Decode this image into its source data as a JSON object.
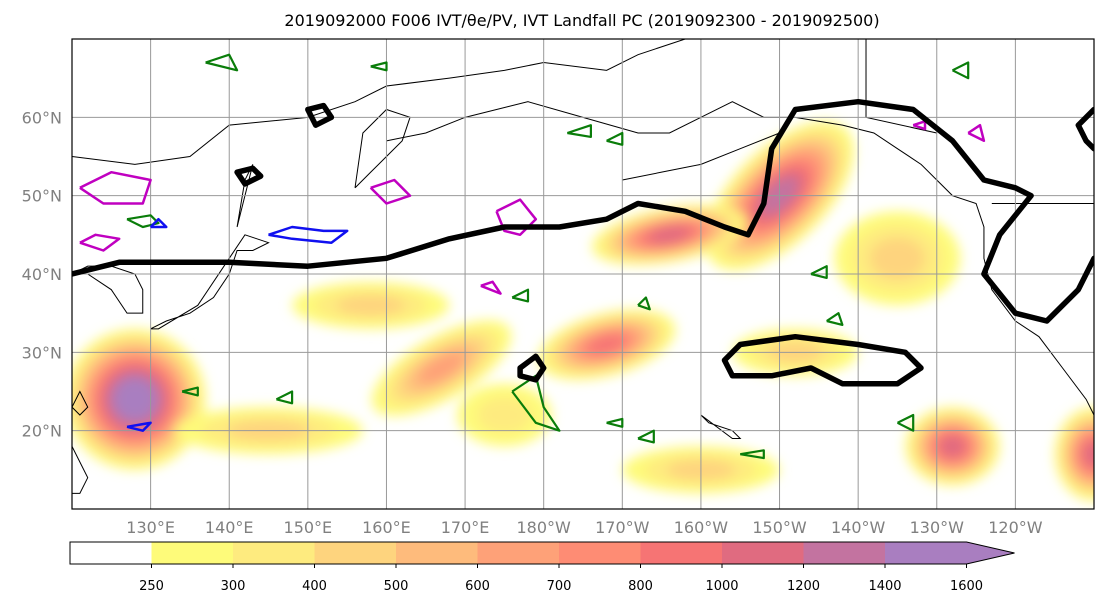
{
  "chart_data": {
    "type": "heatmap",
    "title": "2019092000 F006 IVT/θe/PV, IVT Landfall PC (2019092300 - 2019092500)",
    "map": {
      "lon_range": [
        120,
        250
      ],
      "lat_range": [
        10,
        70
      ],
      "lat_ticks": [
        {
          "value": 20,
          "label": "20°N"
        },
        {
          "value": 30,
          "label": "30°N"
        },
        {
          "value": 40,
          "label": "40°N"
        },
        {
          "value": 50,
          "label": "50°N"
        },
        {
          "value": 60,
          "label": "60°N"
        }
      ],
      "lon_ticks": [
        {
          "value": 130,
          "label": "130°E"
        },
        {
          "value": 140,
          "label": "140°E"
        },
        {
          "value": 150,
          "label": "150°E"
        },
        {
          "value": 160,
          "label": "160°E"
        },
        {
          "value": 170,
          "label": "170°E"
        },
        {
          "value": 180,
          "label": "180°W"
        },
        {
          "value": 190,
          "label": "170°W"
        },
        {
          "value": 200,
          "label": "160°W"
        },
        {
          "value": 210,
          "label": "150°W"
        },
        {
          "value": 220,
          "label": "140°W"
        },
        {
          "value": 230,
          "label": "130°W"
        },
        {
          "value": 240,
          "label": "120°W"
        }
      ],
      "grid": true
    },
    "colorbar": {
      "levels": [
        250,
        300,
        400,
        500,
        600,
        700,
        800,
        1000,
        1200,
        1400,
        1600
      ],
      "colors": [
        "#ffffff",
        "#fefb7a",
        "#feeb7f",
        "#fed47e",
        "#febb7c",
        "#fea178",
        "#fe8c74",
        "#f67474",
        "#e06b80",
        "#c373a0",
        "#a97ec0"
      ],
      "extend": "max"
    },
    "ivt_regions": [
      {
        "lon": 210,
        "lat": 50,
        "rx": 12,
        "ry": 6,
        "rot": -45,
        "peak": 1200
      },
      {
        "lon": 196,
        "lat": 45,
        "rx": 10,
        "ry": 3.5,
        "rot": -10,
        "peak": 1000
      },
      {
        "lon": 128,
        "lat": 24,
        "rx": 9,
        "ry": 9,
        "rot": 0,
        "peak": 1600
      },
      {
        "lon": 188,
        "lat": 31,
        "rx": 9,
        "ry": 4,
        "rot": -15,
        "peak": 800
      },
      {
        "lon": 167,
        "lat": 28,
        "rx": 10,
        "ry": 4,
        "rot": -30,
        "peak": 600
      },
      {
        "lon": 232,
        "lat": 18,
        "rx": 6,
        "ry": 5,
        "rot": 0,
        "peak": 1000
      },
      {
        "lon": 250,
        "lat": 17,
        "rx": 5,
        "ry": 6,
        "rot": 0,
        "peak": 1000
      },
      {
        "lon": 212,
        "lat": 30,
        "rx": 8,
        "ry": 3,
        "rot": 0,
        "peak": 400
      },
      {
        "lon": 200,
        "lat": 15,
        "rx": 10,
        "ry": 3,
        "rot": 0,
        "peak": 400
      },
      {
        "lon": 145,
        "lat": 20,
        "rx": 12,
        "ry": 3,
        "rot": 0,
        "peak": 400
      },
      {
        "lon": 158,
        "lat": 36,
        "rx": 10,
        "ry": 3,
        "rot": 0,
        "peak": 400
      },
      {
        "lon": 175,
        "lat": 22,
        "rx": 6,
        "ry": 4,
        "rot": 0,
        "peak": 300
      },
      {
        "lon": 225,
        "lat": 42,
        "rx": 8,
        "ry": 6,
        "rot": 0,
        "peak": 400
      }
    ],
    "black_contours": [
      {
        "name": "pc-line-west",
        "points": [
          [
            120,
            40
          ],
          [
            126,
            41.5
          ],
          [
            140,
            41.5
          ],
          [
            150,
            41
          ],
          [
            160,
            42
          ],
          [
            168,
            44.5
          ],
          [
            175,
            46
          ],
          [
            182,
            46
          ],
          [
            188,
            47
          ],
          [
            192,
            49
          ],
          [
            198,
            48
          ],
          [
            203,
            46
          ],
          [
            206,
            45
          ],
          [
            208,
            49
          ],
          [
            209,
            56
          ],
          [
            212,
            61
          ],
          [
            220,
            62
          ],
          [
            227,
            61
          ],
          [
            232,
            57
          ],
          [
            236,
            52
          ],
          [
            240,
            51
          ],
          [
            242,
            50
          ],
          [
            238,
            45
          ],
          [
            236,
            40
          ],
          [
            240,
            35
          ],
          [
            244,
            34
          ],
          [
            248,
            38
          ],
          [
            250,
            42
          ]
        ]
      },
      {
        "name": "pc-loop-30n",
        "points": [
          [
            203,
            29
          ],
          [
            205,
            31
          ],
          [
            212,
            32
          ],
          [
            220,
            31
          ],
          [
            226,
            30
          ],
          [
            228,
            28
          ],
          [
            225,
            26
          ],
          [
            218,
            26
          ],
          [
            214,
            28
          ],
          [
            209,
            27
          ],
          [
            204,
            27
          ],
          [
            203,
            29
          ]
        ]
      },
      {
        "name": "pc-loop-180",
        "points": [
          [
            177,
            28
          ],
          [
            179,
            29.5
          ],
          [
            180,
            28
          ],
          [
            179,
            26.5
          ],
          [
            177,
            27
          ],
          [
            177,
            28
          ]
        ]
      },
      {
        "name": "pc-loop-kamchatka",
        "points": [
          [
            150,
            61
          ],
          [
            152,
            61.5
          ],
          [
            153,
            60
          ],
          [
            151,
            59
          ],
          [
            150,
            61
          ]
        ]
      },
      {
        "name": "pc-loop-sakhalin",
        "points": [
          [
            141,
            53
          ],
          [
            143,
            53.5
          ],
          [
            144,
            52.5
          ],
          [
            142,
            51.5
          ],
          [
            141,
            53
          ]
        ]
      },
      {
        "name": "pc-loop-eastedge",
        "points": [
          [
            250,
            61
          ],
          [
            248,
            59
          ],
          [
            249,
            57
          ],
          [
            250,
            56
          ]
        ]
      }
    ],
    "magenta_contours": [
      [
        [
          121,
          51
        ],
        [
          125,
          53
        ],
        [
          130,
          52
        ],
        [
          129,
          49
        ],
        [
          124,
          49
        ],
        [
          121,
          51
        ]
      ],
      [
        [
          121,
          44
        ],
        [
          123,
          45
        ],
        [
          126,
          44.5
        ],
        [
          124,
          43
        ],
        [
          121,
          44
        ]
      ],
      [
        [
          158,
          51
        ],
        [
          161,
          52
        ],
        [
          163,
          50
        ],
        [
          160,
          49
        ],
        [
          158,
          51
        ]
      ],
      [
        [
          174,
          48
        ],
        [
          177,
          49.5
        ],
        [
          179,
          47
        ],
        [
          177,
          45
        ],
        [
          175,
          45.5
        ],
        [
          174,
          48
        ]
      ],
      [
        [
          172,
          38.5
        ],
        [
          173.5,
          39
        ],
        [
          174.5,
          37.5
        ],
        [
          172,
          38.5
        ]
      ],
      [
        [
          234,
          58
        ],
        [
          235.5,
          59
        ],
        [
          236,
          57
        ],
        [
          234,
          58
        ]
      ],
      [
        [
          227,
          59
        ],
        [
          228.5,
          59.5
        ],
        [
          228.5,
          58.5
        ],
        [
          227,
          59
        ]
      ]
    ],
    "blue_contours": [
      [
        [
          145,
          45
        ],
        [
          148,
          46
        ],
        [
          152,
          45.5
        ],
        [
          155,
          45.5
        ],
        [
          153,
          44
        ],
        [
          148,
          44.5
        ],
        [
          145,
          45
        ]
      ],
      [
        [
          127,
          20.5
        ],
        [
          130,
          21
        ],
        [
          129,
          20
        ],
        [
          127,
          20.5
        ]
      ],
      [
        [
          130,
          46
        ],
        [
          131,
          47
        ],
        [
          132,
          46
        ],
        [
          130,
          46
        ]
      ]
    ],
    "green_contours": [
      [
        [
          127,
          47
        ],
        [
          130,
          47.5
        ],
        [
          131,
          46.5
        ],
        [
          129,
          46
        ],
        [
          127,
          47
        ]
      ],
      [
        [
          176,
          25
        ],
        [
          179,
          27
        ],
        [
          180,
          23
        ],
        [
          182,
          20
        ],
        [
          179,
          21
        ],
        [
          176,
          25
        ]
      ],
      [
        [
          188,
          21
        ],
        [
          190,
          21.5
        ],
        [
          190,
          20.5
        ],
        [
          188,
          21
        ]
      ],
      [
        [
          205,
          17
        ],
        [
          208,
          17.5
        ],
        [
          208,
          16.5
        ],
        [
          205,
          17
        ]
      ],
      [
        [
          214,
          40
        ],
        [
          216,
          41
        ],
        [
          216,
          39.5
        ],
        [
          214,
          40
        ]
      ],
      [
        [
          183,
          58
        ],
        [
          186,
          59
        ],
        [
          186,
          57.5
        ],
        [
          183,
          58
        ]
      ],
      [
        [
          134,
          25
        ],
        [
          136,
          25.5
        ],
        [
          136,
          24.5
        ],
        [
          134,
          25
        ]
      ],
      [
        [
          137,
          67
        ],
        [
          140,
          68
        ],
        [
          141,
          66
        ],
        [
          137,
          67
        ]
      ],
      [
        [
          188,
          57
        ],
        [
          190,
          58
        ],
        [
          190,
          56.5
        ],
        [
          188,
          57
        ]
      ],
      [
        [
          232,
          66
        ],
        [
          234,
          67
        ],
        [
          234,
          65
        ],
        [
          232,
          66
        ]
      ],
      [
        [
          158,
          66.5
        ],
        [
          160,
          67
        ],
        [
          160,
          66
        ],
        [
          158,
          66.5
        ]
      ],
      [
        [
          176,
          37
        ],
        [
          178,
          38
        ],
        [
          178,
          36.5
        ],
        [
          176,
          37
        ]
      ],
      [
        [
          192,
          36
        ],
        [
          193,
          37
        ],
        [
          193.5,
          35.5
        ],
        [
          192,
          36
        ]
      ],
      [
        [
          216,
          34
        ],
        [
          217.5,
          35
        ],
        [
          218,
          33.5
        ],
        [
          216,
          34
        ]
      ],
      [
        [
          225,
          21
        ],
        [
          227,
          22
        ],
        [
          227,
          20
        ],
        [
          225,
          21
        ]
      ],
      [
        [
          146,
          24
        ],
        [
          148,
          25
        ],
        [
          148,
          23.5
        ],
        [
          146,
          24
        ]
      ],
      [
        [
          192,
          19
        ],
        [
          194,
          20
        ],
        [
          194,
          18.5
        ],
        [
          192,
          19
        ]
      ]
    ]
  }
}
